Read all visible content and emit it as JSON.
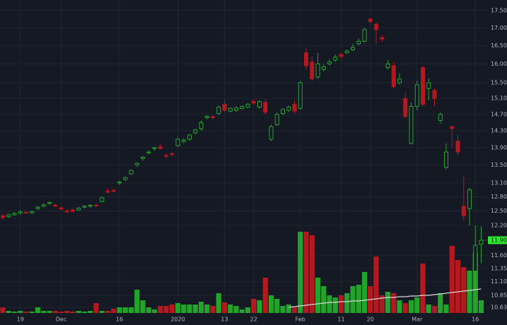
{
  "chart_data": {
    "type": "candlestick",
    "categories": [
      null,
      null,
      null,
      "19",
      null,
      null,
      null,
      null,
      null,
      null,
      "Dec",
      null,
      null,
      null,
      null,
      null,
      null,
      null,
      null,
      null,
      "16",
      null,
      null,
      null,
      null,
      null,
      null,
      null,
      null,
      null,
      "2020",
      null,
      null,
      null,
      null,
      null,
      null,
      null,
      "13",
      null,
      null,
      null,
      null,
      "22",
      null,
      null,
      null,
      null,
      null,
      null,
      null,
      "Feb",
      null,
      null,
      null,
      null,
      null,
      null,
      "11",
      null,
      null,
      null,
      null,
      "20",
      null,
      null,
      null,
      null,
      null,
      null,
      null,
      "Mar",
      null,
      null,
      null,
      null,
      null,
      null,
      null,
      null,
      null,
      "16",
      null
    ],
    "open": [
      12.4,
      12.38,
      12.42,
      12.45,
      12.47,
      12.46,
      12.55,
      12.6,
      12.66,
      12.62,
      12.56,
      12.5,
      12.52,
      12.52,
      12.58,
      12.6,
      12.62,
      12.7,
      12.92,
      12.94,
      13.1,
      13.18,
      13.3,
      13.5,
      13.65,
      13.78,
      13.88,
      13.92,
      13.72,
      13.76,
      13.95,
      14.05,
      14.1,
      14.25,
      14.35,
      14.62,
      14.64,
      14.72,
      14.95,
      14.78,
      14.8,
      14.85,
      14.88,
      15.02,
      14.88,
      15.0,
      14.1,
      14.45,
      14.72,
      14.8,
      14.95,
      14.85,
      16.3,
      16.05,
      15.65,
      15.85,
      16.0,
      16.1,
      16.25,
      16.3,
      16.38,
      16.55,
      16.62,
      17.25,
      17.1,
      16.72,
      15.9,
      15.95,
      15.5,
      15.1,
      14.0,
      14.9,
      15.9,
      15.35,
      15.3,
      14.55,
      13.45,
      14.4,
      14.05,
      12.6,
      12.55,
      11.3,
      11.82
    ],
    "high": [
      12.45,
      12.44,
      12.47,
      12.52,
      12.5,
      12.5,
      12.6,
      12.66,
      12.7,
      12.66,
      12.6,
      12.54,
      12.56,
      12.58,
      12.62,
      12.64,
      12.66,
      12.8,
      12.98,
      12.98,
      13.15,
      13.24,
      13.4,
      13.56,
      13.7,
      13.84,
      13.92,
      13.98,
      13.76,
      13.8,
      14.15,
      14.12,
      14.22,
      14.35,
      14.55,
      14.68,
      14.68,
      14.92,
      15.05,
      14.88,
      14.9,
      14.92,
      14.98,
      15.08,
      15.05,
      15.08,
      14.45,
      14.75,
      14.85,
      14.92,
      15.05,
      15.55,
      16.45,
      16.2,
      16.3,
      15.98,
      16.12,
      16.25,
      16.3,
      16.38,
      16.55,
      16.7,
      17.0,
      17.3,
      17.15,
      16.8,
      16.1,
      16.05,
      15.75,
      15.25,
      15.0,
      15.55,
      15.95,
      15.62,
      15.35,
      14.75,
      14.0,
      14.42,
      14.2,
      13.25,
      13.0,
      12.2,
      12.18
    ],
    "low": [
      12.32,
      12.35,
      12.4,
      12.43,
      12.44,
      12.44,
      12.52,
      12.58,
      12.62,
      12.58,
      12.52,
      12.46,
      12.46,
      12.5,
      12.55,
      12.57,
      12.58,
      12.68,
      12.88,
      12.9,
      13.06,
      13.14,
      13.28,
      13.46,
      13.6,
      13.74,
      13.84,
      13.86,
      13.66,
      13.7,
      13.92,
      14.0,
      14.06,
      14.22,
      14.3,
      14.58,
      14.58,
      14.68,
      14.75,
      14.74,
      14.76,
      14.82,
      14.85,
      14.94,
      14.84,
      14.7,
      14.05,
      14.42,
      14.68,
      14.76,
      14.72,
      14.82,
      15.85,
      15.55,
      15.6,
      15.8,
      15.95,
      16.05,
      16.15,
      16.28,
      16.35,
      16.5,
      16.58,
      17.1,
      16.55,
      16.6,
      15.85,
      15.35,
      15.45,
      14.6,
      13.98,
      14.8,
      14.9,
      15.05,
      14.9,
      14.48,
      13.4,
      13.9,
      13.72,
      12.3,
      12.2,
      11.2,
      11.45
    ],
    "close": [
      12.36,
      12.42,
      12.45,
      12.48,
      12.46,
      12.49,
      12.58,
      12.63,
      12.68,
      12.6,
      12.54,
      12.48,
      12.49,
      12.56,
      12.6,
      12.62,
      12.61,
      12.78,
      12.9,
      12.92,
      13.12,
      13.22,
      13.38,
      13.54,
      13.68,
      13.8,
      13.9,
      13.88,
      13.7,
      13.74,
      14.1,
      14.08,
      14.2,
      14.32,
      14.5,
      14.65,
      14.62,
      14.88,
      14.8,
      14.85,
      14.86,
      14.9,
      14.95,
      14.98,
      15.02,
      14.75,
      14.4,
      14.7,
      14.82,
      14.88,
      14.78,
      15.5,
      15.95,
      15.6,
      16.0,
      15.92,
      16.05,
      16.18,
      16.2,
      16.35,
      16.45,
      16.62,
      16.95,
      17.18,
      16.95,
      16.68,
      16.0,
      15.4,
      15.6,
      14.65,
      14.9,
      15.45,
      14.95,
      15.5,
      15.1,
      14.7,
      13.8,
      14.35,
      13.8,
      12.4,
      12.95,
      11.8,
      11.9
    ],
    "volume": [
      8,
      3,
      2,
      3,
      2,
      2,
      8,
      3,
      3,
      3,
      2,
      3,
      2,
      3,
      2,
      3,
      14,
      3,
      3,
      6,
      8,
      8,
      8,
      33,
      18,
      8,
      5,
      10,
      10,
      12,
      14,
      12,
      12,
      12,
      16,
      12,
      10,
      28,
      15,
      12,
      10,
      5,
      8,
      20,
      18,
      50,
      25,
      20,
      10,
      12,
      8,
      115,
      115,
      110,
      50,
      38,
      25,
      22,
      25,
      28,
      38,
      40,
      58,
      38,
      80,
      25,
      30,
      28,
      18,
      14,
      18,
      22,
      70,
      12,
      10,
      28,
      12,
      95,
      75,
      65,
      60,
      85,
      18
    ],
    "volume_ma": [
      null,
      null,
      null,
      null,
      null,
      null,
      null,
      null,
      null,
      null,
      null,
      null,
      null,
      null,
      null,
      null,
      null,
      null,
      null,
      null,
      null,
      null,
      null,
      null,
      null,
      null,
      null,
      null,
      null,
      null,
      null,
      null,
      null,
      null,
      null,
      null,
      null,
      null,
      null,
      null,
      null,
      null,
      null,
      null,
      null,
      null,
      null,
      null,
      null,
      8,
      9,
      10,
      11,
      12,
      13,
      14,
      15,
      15,
      16,
      16,
      17,
      17,
      18,
      19,
      20,
      21,
      22,
      22,
      23,
      23,
      24,
      24,
      25,
      25,
      26,
      27,
      28,
      29,
      30,
      31,
      32,
      33,
      34
    ],
    "vlim": [
      0,
      130
    ],
    "log_scale": true,
    "ylim": [
      10.47,
      17.81
    ],
    "yticks": [
      {
        "value": 17.5,
        "label": "17.50"
      },
      {
        "value": 17,
        "label": "17.00"
      },
      {
        "value": 16.5,
        "label": "16.50"
      },
      {
        "value": 16,
        "label": "16.00"
      },
      {
        "value": 15.5,
        "label": "15.50"
      },
      {
        "value": 15.1,
        "label": "15.10"
      },
      {
        "value": 14.7,
        "label": "14.70"
      },
      {
        "value": 14.3,
        "label": "14.30"
      },
      {
        "value": 13.9,
        "label": "13.90"
      },
      {
        "value": 13.5,
        "label": "13.50"
      },
      {
        "value": 13.1,
        "label": "13.10"
      },
      {
        "value": 12.8,
        "label": "12.80"
      },
      {
        "value": 12.5,
        "label": "12.50"
      },
      {
        "value": 12.2,
        "label": "12.20"
      },
      {
        "value": 11.6,
        "label": "11.60"
      },
      {
        "value": 11.35,
        "label": "11.35"
      },
      {
        "value": 11.1,
        "label": "11.10"
      },
      {
        "value": 10.85,
        "label": "10.85"
      },
      {
        "value": 10.63,
        "label": "10.63"
      }
    ],
    "current_price": {
      "value": 11.9,
      "label": "11.90"
    },
    "up_color": "#22a32a",
    "down_color": "#b3191f",
    "ma_color": "#d8d8d8",
    "grid": true
  }
}
